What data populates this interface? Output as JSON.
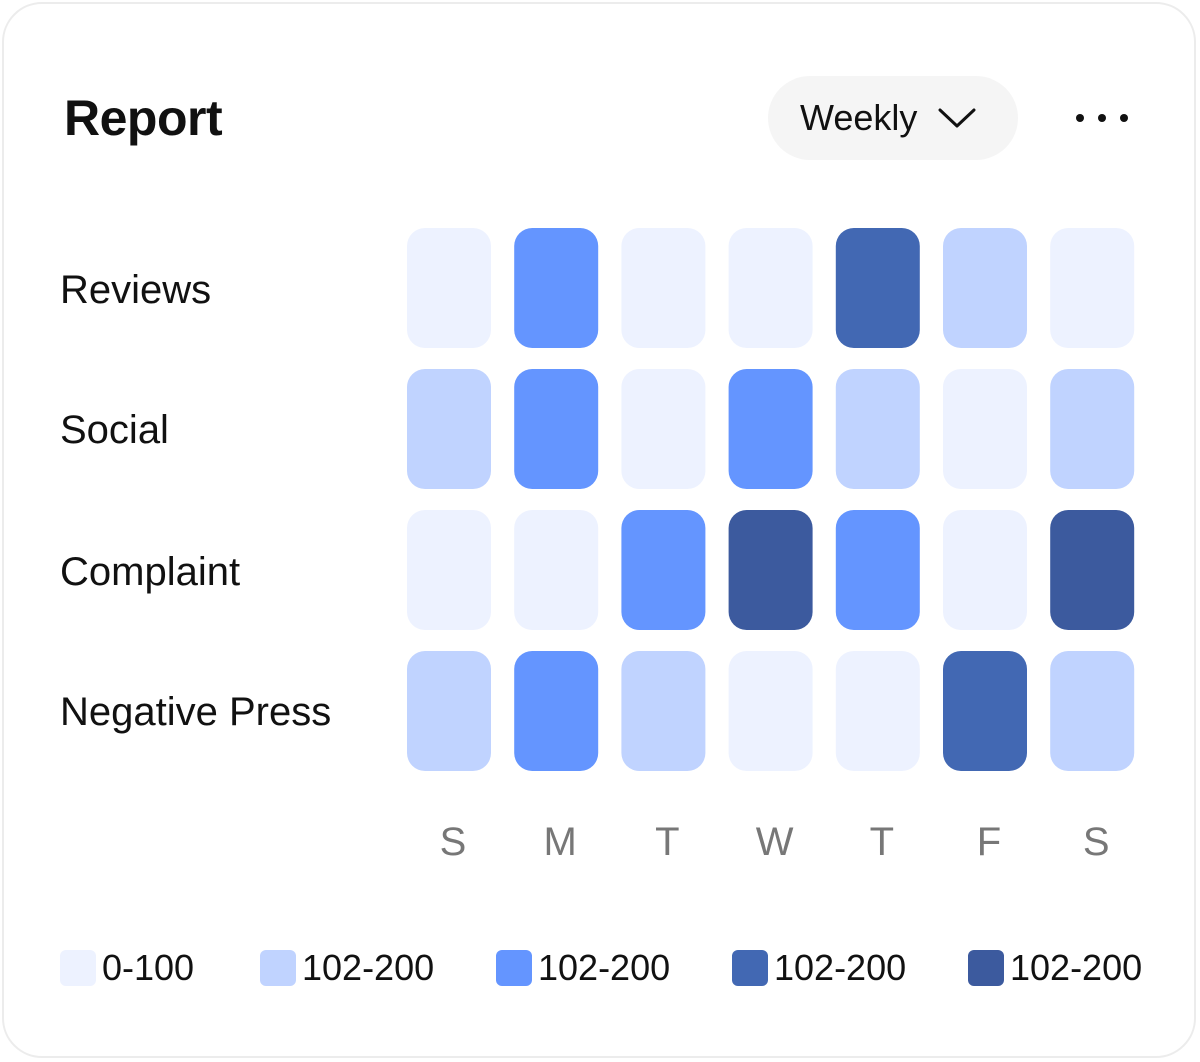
{
  "header": {
    "title": "Report",
    "period": "Weekly",
    "period_icon": "chevron-down-icon",
    "more_icon": "more-dots-icon"
  },
  "colors": {
    "level0": "#edf2ff",
    "level1": "#c0d3ff",
    "level2": "#6495ff",
    "level3": "#4268b3",
    "level4": "#3c5a9e",
    "axis_text": "#777777",
    "card_border": "#ececec"
  },
  "chart_data": {
    "type": "heatmap",
    "title": "Report",
    "rows": [
      "Reviews",
      "Social",
      "Complaint",
      "Negative Press"
    ],
    "columns": [
      "S",
      "M",
      "T",
      "W",
      "T",
      "F",
      "S"
    ],
    "levels": [
      [
        0,
        2,
        0,
        0,
        3,
        1,
        0
      ],
      [
        1,
        2,
        0,
        2,
        1,
        0,
        1
      ],
      [
        0,
        0,
        2,
        4,
        2,
        0,
        4
      ],
      [
        1,
        2,
        1,
        0,
        0,
        3,
        1
      ]
    ],
    "legend": [
      {
        "label": "0-100",
        "level": 0
      },
      {
        "label": "102-200",
        "level": 1
      },
      {
        "label": "102-200",
        "level": 2
      },
      {
        "label": "102-200",
        "level": 3
      },
      {
        "label": "102-200",
        "level": 4
      }
    ],
    "legend_position": "bottom"
  }
}
